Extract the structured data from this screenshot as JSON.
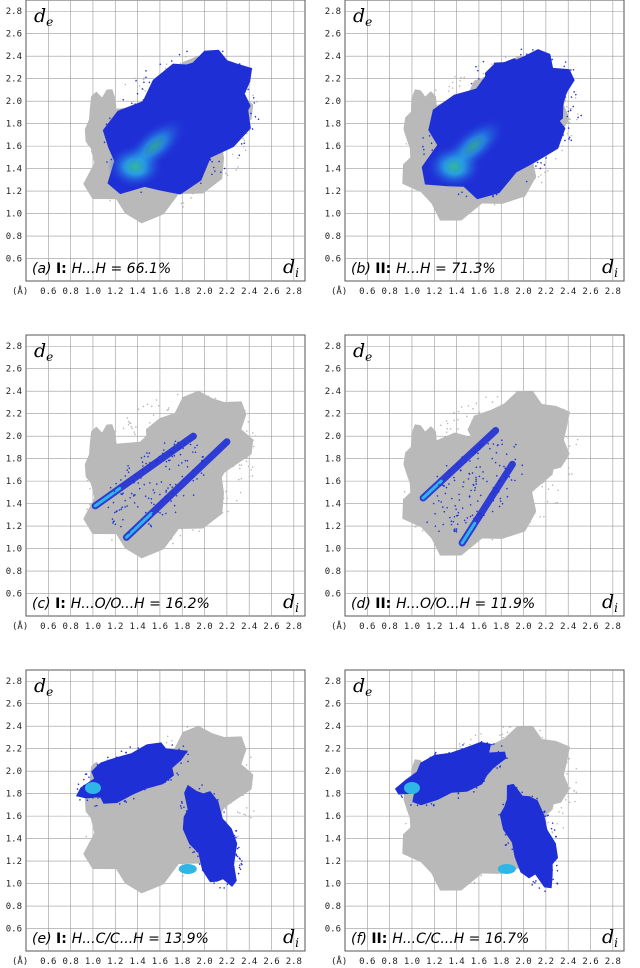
{
  "figure": {
    "panels": [
      {
        "label": "(a)",
        "structure": "I",
        "contact": "H...H = 66.1%"
      },
      {
        "label": "(b)",
        "structure": "II",
        "contact": "H...H = 71.3%"
      },
      {
        "label": "(c)",
        "structure": "I",
        "contact": "H...O/O...H = 16.2%"
      },
      {
        "label": "(d)",
        "structure": "II",
        "contact": "H...O/O...H = 11.9%"
      },
      {
        "label": "(e)",
        "structure": "I",
        "contact": "H...C/C...H = 13.9%"
      },
      {
        "label": "(f)",
        "structure": "II",
        "contact": "H...C/C...H = 16.7%"
      }
    ],
    "ylabel_main": "d",
    "ylabel_sub": "e",
    "xlabel_main": "d",
    "xlabel_sub": "i",
    "x_unit_label": "(Å)",
    "colors": {
      "grey": "#b9b9b9",
      "blue": "#1f2fd6",
      "cyan": "#2fb6e6",
      "green": "#35d07a",
      "grid": "#9a9a9a"
    }
  },
  "chart_data": [
    {
      "type": "heatmap",
      "title": "(a) I: H...H = 66.1%",
      "xlabel": "di",
      "ylabel": "de",
      "x_ticks": [
        "0.6",
        "0.8",
        "1.0",
        "1.2",
        "1.4",
        "1.6",
        "1.8",
        "2.0",
        "2.2",
        "2.4",
        "2.6",
        "2.8"
      ],
      "y_ticks": [
        "0.6",
        "0.8",
        "1.0",
        "1.2",
        "1.4",
        "1.6",
        "1.8",
        "2.0",
        "2.2",
        "2.4",
        "2.6",
        "2.8"
      ],
      "xlim": [
        0.4,
        2.9
      ],
      "ylim": [
        0.4,
        2.9
      ],
      "contact_percent": 66.1
    },
    {
      "type": "heatmap",
      "title": "(b) II: H...H = 71.3%",
      "xlabel": "di",
      "ylabel": "de",
      "x_ticks": [
        "0.6",
        "0.8",
        "1.0",
        "1.2",
        "1.4",
        "1.6",
        "1.8",
        "2.0",
        "2.2",
        "2.4",
        "2.6",
        "2.8"
      ],
      "y_ticks": [
        "0.6",
        "0.8",
        "1.0",
        "1.2",
        "1.4",
        "1.6",
        "1.8",
        "2.0",
        "2.2",
        "2.4",
        "2.6",
        "2.8"
      ],
      "xlim": [
        0.4,
        2.9
      ],
      "ylim": [
        0.4,
        2.9
      ],
      "contact_percent": 71.3
    },
    {
      "type": "heatmap",
      "title": "(c) I: H...O/O...H = 16.2%",
      "xlabel": "di",
      "ylabel": "de",
      "x_ticks": [
        "0.6",
        "0.8",
        "1.0",
        "1.2",
        "1.4",
        "1.6",
        "1.8",
        "2.0",
        "2.2",
        "2.4",
        "2.6",
        "2.8"
      ],
      "y_ticks": [
        "0.6",
        "0.8",
        "1.0",
        "1.2",
        "1.4",
        "1.6",
        "1.8",
        "2.0",
        "2.2",
        "2.4",
        "2.6",
        "2.8"
      ],
      "xlim": [
        0.4,
        2.9
      ],
      "ylim": [
        0.4,
        2.9
      ],
      "contact_percent": 16.2
    },
    {
      "type": "heatmap",
      "title": "(d) II: H...O/O...H = 11.9%",
      "xlabel": "di",
      "ylabel": "de",
      "x_ticks": [
        "0.6",
        "0.8",
        "1.0",
        "1.2",
        "1.4",
        "1.6",
        "1.8",
        "2.0",
        "2.2",
        "2.4",
        "2.6",
        "2.8"
      ],
      "y_ticks": [
        "0.6",
        "0.8",
        "1.0",
        "1.2",
        "1.4",
        "1.6",
        "1.8",
        "2.0",
        "2.2",
        "2.4",
        "2.6",
        "2.8"
      ],
      "xlim": [
        0.4,
        2.9
      ],
      "ylim": [
        0.4,
        2.9
      ],
      "contact_percent": 11.9
    },
    {
      "type": "heatmap",
      "title": "(e) I: H...C/C...H = 13.9%",
      "xlabel": "di",
      "ylabel": "de",
      "x_ticks": [
        "0.6",
        "0.8",
        "1.0",
        "1.2",
        "1.4",
        "1.6",
        "1.8",
        "2.0",
        "2.2",
        "2.4",
        "2.6",
        "2.8"
      ],
      "y_ticks": [
        "0.6",
        "0.8",
        "1.0",
        "1.2",
        "1.4",
        "1.6",
        "1.8",
        "2.0",
        "2.2",
        "2.4",
        "2.6",
        "2.8"
      ],
      "xlim": [
        0.4,
        2.9
      ],
      "ylim": [
        0.4,
        2.9
      ],
      "contact_percent": 13.9
    },
    {
      "type": "heatmap",
      "title": "(f) II: H...C/C...H = 16.7%",
      "xlabel": "di",
      "ylabel": "de",
      "x_ticks": [
        "0.6",
        "0.8",
        "1.0",
        "1.2",
        "1.4",
        "1.6",
        "1.8",
        "2.0",
        "2.2",
        "2.4",
        "2.6",
        "2.8"
      ],
      "y_ticks": [
        "0.6",
        "0.8",
        "1.0",
        "1.2",
        "1.4",
        "1.6",
        "1.8",
        "2.0",
        "2.2",
        "2.4",
        "2.6",
        "2.8"
      ],
      "xlim": [
        0.4,
        2.9
      ],
      "ylim": [
        0.4,
        2.9
      ],
      "contact_percent": 16.7
    }
  ]
}
